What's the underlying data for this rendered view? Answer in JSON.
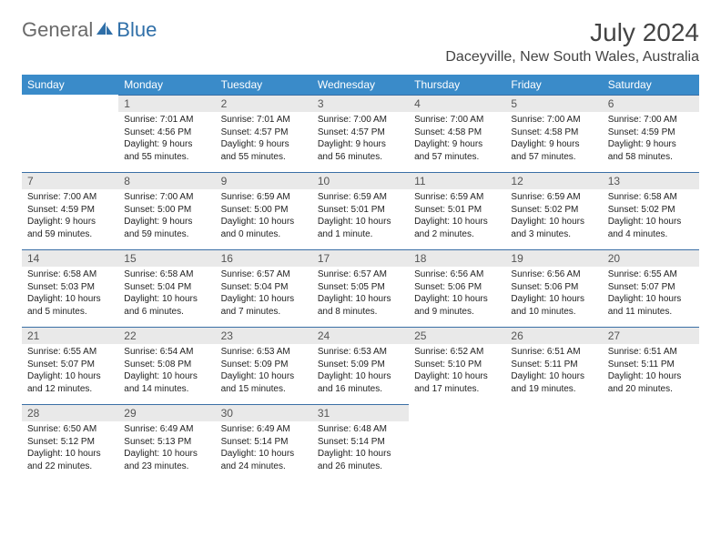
{
  "logo": {
    "text_general": "General",
    "text_blue": "Blue"
  },
  "title": "July 2024",
  "location": "Daceyville, New South Wales, Australia",
  "colors": {
    "header_bg": "#3a8bc9",
    "header_text": "#ffffff",
    "daynum_bg": "#e9e9e9",
    "border": "#3a6fa5",
    "logo_gray": "#6a6a6a",
    "logo_blue": "#2f6fa8"
  },
  "weekdays": [
    "Sunday",
    "Monday",
    "Tuesday",
    "Wednesday",
    "Thursday",
    "Friday",
    "Saturday"
  ],
  "weeks": [
    [
      null,
      {
        "n": "1",
        "sr": "Sunrise: 7:01 AM",
        "ss": "Sunset: 4:56 PM",
        "dl1": "Daylight: 9 hours",
        "dl2": "and 55 minutes."
      },
      {
        "n": "2",
        "sr": "Sunrise: 7:01 AM",
        "ss": "Sunset: 4:57 PM",
        "dl1": "Daylight: 9 hours",
        "dl2": "and 55 minutes."
      },
      {
        "n": "3",
        "sr": "Sunrise: 7:00 AM",
        "ss": "Sunset: 4:57 PM",
        "dl1": "Daylight: 9 hours",
        "dl2": "and 56 minutes."
      },
      {
        "n": "4",
        "sr": "Sunrise: 7:00 AM",
        "ss": "Sunset: 4:58 PM",
        "dl1": "Daylight: 9 hours",
        "dl2": "and 57 minutes."
      },
      {
        "n": "5",
        "sr": "Sunrise: 7:00 AM",
        "ss": "Sunset: 4:58 PM",
        "dl1": "Daylight: 9 hours",
        "dl2": "and 57 minutes."
      },
      {
        "n": "6",
        "sr": "Sunrise: 7:00 AM",
        "ss": "Sunset: 4:59 PM",
        "dl1": "Daylight: 9 hours",
        "dl2": "and 58 minutes."
      }
    ],
    [
      {
        "n": "7",
        "sr": "Sunrise: 7:00 AM",
        "ss": "Sunset: 4:59 PM",
        "dl1": "Daylight: 9 hours",
        "dl2": "and 59 minutes."
      },
      {
        "n": "8",
        "sr": "Sunrise: 7:00 AM",
        "ss": "Sunset: 5:00 PM",
        "dl1": "Daylight: 9 hours",
        "dl2": "and 59 minutes."
      },
      {
        "n": "9",
        "sr": "Sunrise: 6:59 AM",
        "ss": "Sunset: 5:00 PM",
        "dl1": "Daylight: 10 hours",
        "dl2": "and 0 minutes."
      },
      {
        "n": "10",
        "sr": "Sunrise: 6:59 AM",
        "ss": "Sunset: 5:01 PM",
        "dl1": "Daylight: 10 hours",
        "dl2": "and 1 minute."
      },
      {
        "n": "11",
        "sr": "Sunrise: 6:59 AM",
        "ss": "Sunset: 5:01 PM",
        "dl1": "Daylight: 10 hours",
        "dl2": "and 2 minutes."
      },
      {
        "n": "12",
        "sr": "Sunrise: 6:59 AM",
        "ss": "Sunset: 5:02 PM",
        "dl1": "Daylight: 10 hours",
        "dl2": "and 3 minutes."
      },
      {
        "n": "13",
        "sr": "Sunrise: 6:58 AM",
        "ss": "Sunset: 5:02 PM",
        "dl1": "Daylight: 10 hours",
        "dl2": "and 4 minutes."
      }
    ],
    [
      {
        "n": "14",
        "sr": "Sunrise: 6:58 AM",
        "ss": "Sunset: 5:03 PM",
        "dl1": "Daylight: 10 hours",
        "dl2": "and 5 minutes."
      },
      {
        "n": "15",
        "sr": "Sunrise: 6:58 AM",
        "ss": "Sunset: 5:04 PM",
        "dl1": "Daylight: 10 hours",
        "dl2": "and 6 minutes."
      },
      {
        "n": "16",
        "sr": "Sunrise: 6:57 AM",
        "ss": "Sunset: 5:04 PM",
        "dl1": "Daylight: 10 hours",
        "dl2": "and 7 minutes."
      },
      {
        "n": "17",
        "sr": "Sunrise: 6:57 AM",
        "ss": "Sunset: 5:05 PM",
        "dl1": "Daylight: 10 hours",
        "dl2": "and 8 minutes."
      },
      {
        "n": "18",
        "sr": "Sunrise: 6:56 AM",
        "ss": "Sunset: 5:06 PM",
        "dl1": "Daylight: 10 hours",
        "dl2": "and 9 minutes."
      },
      {
        "n": "19",
        "sr": "Sunrise: 6:56 AM",
        "ss": "Sunset: 5:06 PM",
        "dl1": "Daylight: 10 hours",
        "dl2": "and 10 minutes."
      },
      {
        "n": "20",
        "sr": "Sunrise: 6:55 AM",
        "ss": "Sunset: 5:07 PM",
        "dl1": "Daylight: 10 hours",
        "dl2": "and 11 minutes."
      }
    ],
    [
      {
        "n": "21",
        "sr": "Sunrise: 6:55 AM",
        "ss": "Sunset: 5:07 PM",
        "dl1": "Daylight: 10 hours",
        "dl2": "and 12 minutes."
      },
      {
        "n": "22",
        "sr": "Sunrise: 6:54 AM",
        "ss": "Sunset: 5:08 PM",
        "dl1": "Daylight: 10 hours",
        "dl2": "and 14 minutes."
      },
      {
        "n": "23",
        "sr": "Sunrise: 6:53 AM",
        "ss": "Sunset: 5:09 PM",
        "dl1": "Daylight: 10 hours",
        "dl2": "and 15 minutes."
      },
      {
        "n": "24",
        "sr": "Sunrise: 6:53 AM",
        "ss": "Sunset: 5:09 PM",
        "dl1": "Daylight: 10 hours",
        "dl2": "and 16 minutes."
      },
      {
        "n": "25",
        "sr": "Sunrise: 6:52 AM",
        "ss": "Sunset: 5:10 PM",
        "dl1": "Daylight: 10 hours",
        "dl2": "and 17 minutes."
      },
      {
        "n": "26",
        "sr": "Sunrise: 6:51 AM",
        "ss": "Sunset: 5:11 PM",
        "dl1": "Daylight: 10 hours",
        "dl2": "and 19 minutes."
      },
      {
        "n": "27",
        "sr": "Sunrise: 6:51 AM",
        "ss": "Sunset: 5:11 PM",
        "dl1": "Daylight: 10 hours",
        "dl2": "and 20 minutes."
      }
    ],
    [
      {
        "n": "28",
        "sr": "Sunrise: 6:50 AM",
        "ss": "Sunset: 5:12 PM",
        "dl1": "Daylight: 10 hours",
        "dl2": "and 22 minutes."
      },
      {
        "n": "29",
        "sr": "Sunrise: 6:49 AM",
        "ss": "Sunset: 5:13 PM",
        "dl1": "Daylight: 10 hours",
        "dl2": "and 23 minutes."
      },
      {
        "n": "30",
        "sr": "Sunrise: 6:49 AM",
        "ss": "Sunset: 5:14 PM",
        "dl1": "Daylight: 10 hours",
        "dl2": "and 24 minutes."
      },
      {
        "n": "31",
        "sr": "Sunrise: 6:48 AM",
        "ss": "Sunset: 5:14 PM",
        "dl1": "Daylight: 10 hours",
        "dl2": "and 26 minutes."
      },
      null,
      null,
      null
    ]
  ]
}
